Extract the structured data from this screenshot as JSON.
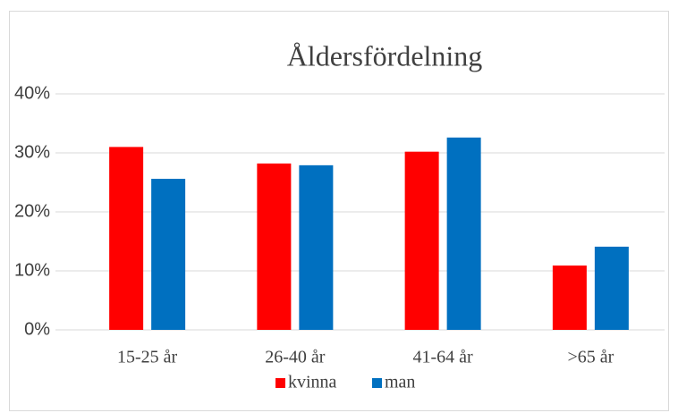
{
  "chart_data": {
    "type": "bar",
    "title": "Åldersfördelning",
    "categories": [
      "15-25 år",
      "26-40 år",
      "41-64 år",
      ">65 år"
    ],
    "series": [
      {
        "name": "kvinna",
        "color": "#ff0000",
        "values": [
          31,
          28.2,
          30.2,
          10.9
        ]
      },
      {
        "name": "man",
        "color": "#0070c0",
        "values": [
          25.6,
          27.9,
          32.6,
          14.1
        ]
      }
    ],
    "ylim": [
      0,
      40
    ],
    "yticks": [
      {
        "value": 0,
        "label": "0%"
      },
      {
        "value": 10,
        "label": "10%"
      },
      {
        "value": 20,
        "label": "20%"
      },
      {
        "value": 30,
        "label": "30%"
      },
      {
        "value": 40,
        "label": "40%"
      }
    ],
    "grid": true,
    "legend": "bottom"
  }
}
